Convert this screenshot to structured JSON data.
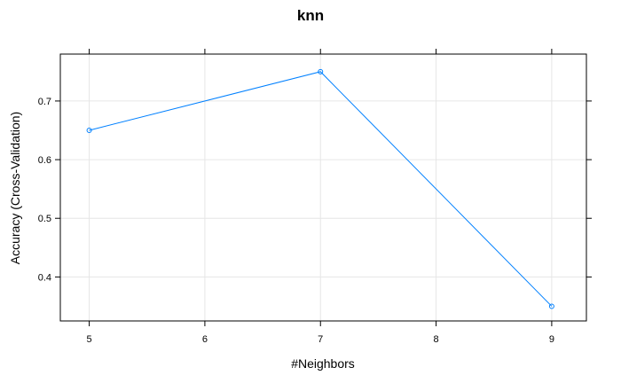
{
  "chart_data": {
    "type": "line",
    "title": "knn",
    "xlabel": "#Neighbors",
    "ylabel": "Accuracy (Cross-Validation)",
    "x": [
      5,
      7,
      9
    ],
    "series": [
      {
        "values": [
          0.65,
          0.75,
          0.35
        ]
      }
    ],
    "xticks": [
      5,
      6,
      7,
      8,
      9
    ],
    "yticks": [
      0.4,
      0.5,
      0.6,
      0.7
    ],
    "xlim": [
      4.75,
      9.3
    ],
    "ylim": [
      0.325,
      0.78
    ],
    "grid": true,
    "colors": {
      "series": "#0080ff",
      "grid": "#e6e6e6",
      "frame": "#000000"
    }
  }
}
